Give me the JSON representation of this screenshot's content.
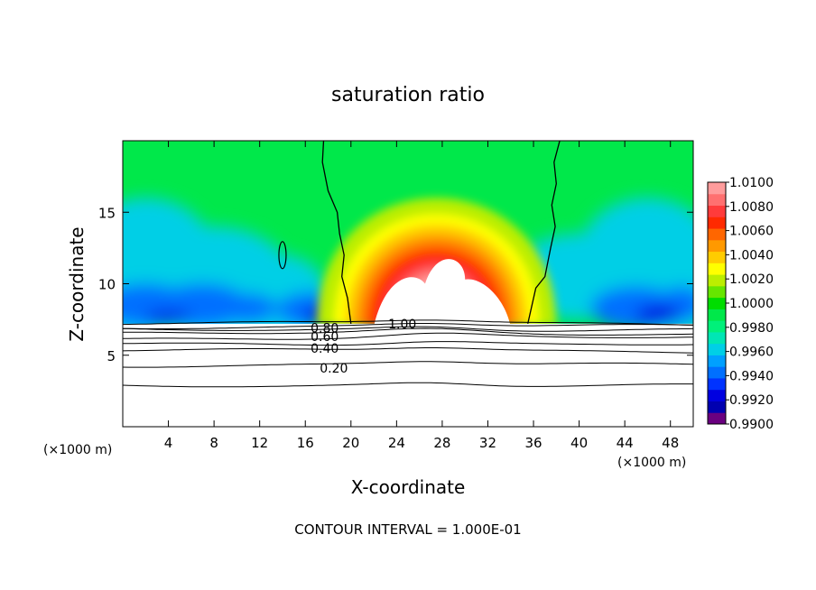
{
  "chart_data": {
    "type": "heatmap",
    "title": "saturation ratio",
    "xlabel": "X-coordinate",
    "ylabel": "Z-coordinate",
    "x_units": "(×1000 m)",
    "z_units": "(×1000 m)",
    "xlim": [
      0,
      50
    ],
    "ylim": [
      0,
      20
    ],
    "x_ticks": [
      4,
      8,
      12,
      16,
      20,
      24,
      28,
      32,
      36,
      40,
      44,
      48
    ],
    "y_ticks": [
      5,
      10,
      15
    ],
    "footer": "CONTOUR INTERVAL = 1.000E-01",
    "colorbar": {
      "labels": [
        "1.0100",
        "1.0080",
        "1.0060",
        "1.0040",
        "1.0020",
        "1.0000",
        "0.9980",
        "0.9960",
        "0.9940",
        "0.9920",
        "0.9900"
      ],
      "levels": [
        0.99,
        0.991,
        0.992,
        0.993,
        0.994,
        0.995,
        0.996,
        0.997,
        0.998,
        0.999,
        1.0,
        1.001,
        1.002,
        1.003,
        1.004,
        1.005,
        1.006,
        1.007,
        1.008,
        1.009,
        1.01
      ],
      "colors": [
        "#6a0080",
        "#0000b0",
        "#0000e0",
        "#0033ff",
        "#0070ff",
        "#00a0ff",
        "#00cfe6",
        "#00e6b4",
        "#00f07a",
        "#00e84a",
        "#00dd00",
        "#66e600",
        "#bbee00",
        "#ffff00",
        "#ffcc00",
        "#ff9900",
        "#ff6600",
        "#ff2a00",
        "#ff3b3b",
        "#ff7070",
        "#ff9c9c"
      ]
    },
    "contour_labels": [
      {
        "text": "0.20",
        "x": 18.5,
        "z": 4.1
      },
      {
        "text": "0.40",
        "x": 17.7,
        "z": 5.5
      },
      {
        "text": "0.60",
        "x": 17.7,
        "z": 6.3
      },
      {
        "text": "0.80",
        "x": 17.7,
        "z": 6.9
      },
      {
        "text": "1.00",
        "x": 24.5,
        "z": 7.2
      }
    ],
    "contour_lines_z": [
      2.9,
      4.3,
      5.3,
      5.8,
      6.2,
      6.5,
      6.8,
      7.0,
      7.2
    ],
    "cloud_boundary_z": 7.2,
    "supersaturated_region": {
      "x": [
        20.0,
        35.5
      ],
      "z_top": 20,
      "peak_x": 27.5,
      "peak_value_z": 13.0
    },
    "grid": false
  }
}
